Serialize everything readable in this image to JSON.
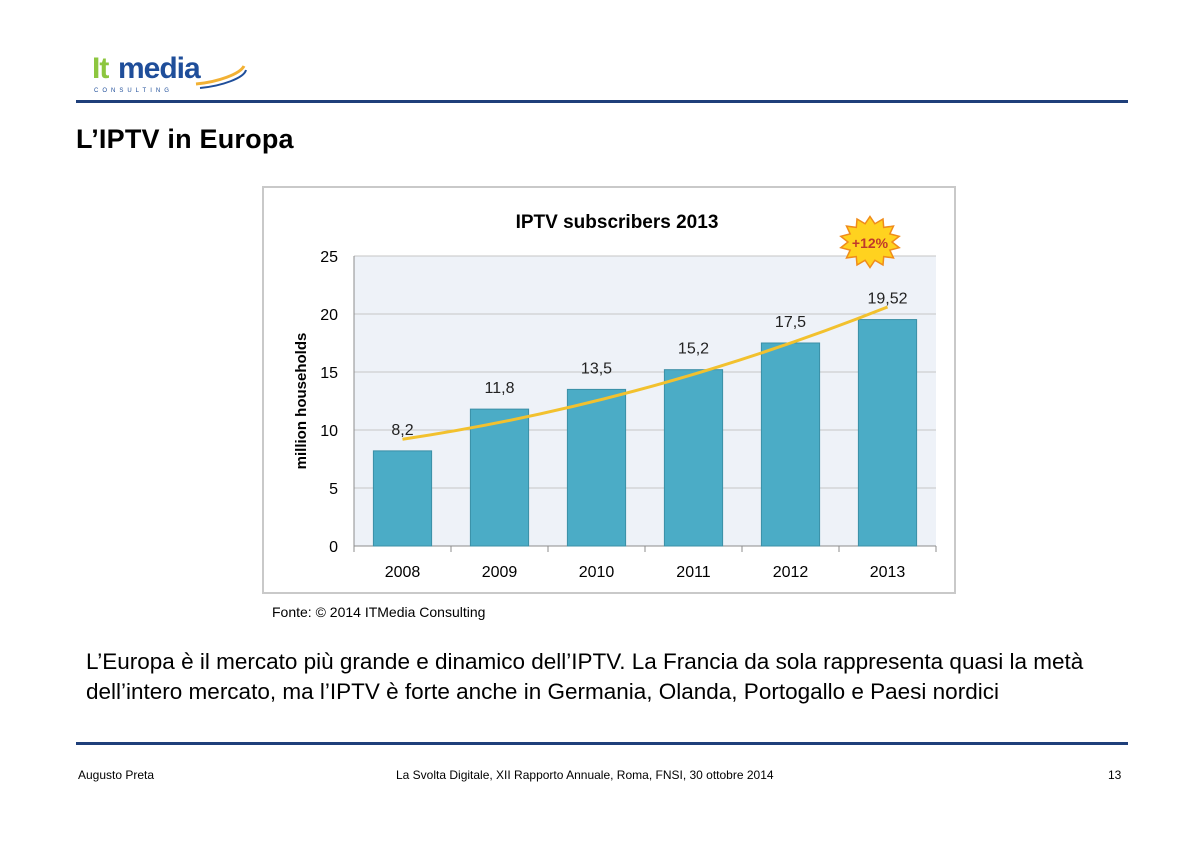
{
  "brand": {
    "logo_text": "Itmedia",
    "logo_subtext": "CONSULTING"
  },
  "slide": {
    "title": "L’IPTV in Europa"
  },
  "source": "Fonte: © 2014 ITMedia Consulting",
  "body_text": "L’Europa è il mercato più grande e dinamico dell’IPTV. La Francia da sola rappresenta quasi la metà dell’intero mercato, ma l’IPTV è forte anche in Germania, Olanda, Portogallo e Paesi nordici",
  "footer": {
    "author": "Augusto Preta",
    "event": "La Svolta Digitale, XII Rapporto Annuale, Roma, FNSI, 30 ottobre 2014",
    "page": "13"
  },
  "colors": {
    "rule": "#1f3f7a",
    "bar": "#4bacc6",
    "trend": "#f2c12e",
    "badge": "#ffd21f"
  },
  "chart_data": {
    "type": "bar",
    "title": "IPTV subscribers  2013",
    "xlabel": "",
    "ylabel": "million households",
    "categories": [
      "2008",
      "2009",
      "2010",
      "2011",
      "2012",
      "2013"
    ],
    "values": [
      8.2,
      11.8,
      13.5,
      15.2,
      17.5,
      19.52
    ],
    "data_labels": [
      "8,2",
      "11,8",
      "13,5",
      "15,2",
      "17,5",
      "19,52"
    ],
    "yticks": [
      0,
      5,
      10,
      15,
      20,
      25
    ],
    "ylim": [
      0,
      25
    ],
    "grid": true,
    "trendline": {
      "type": "curve",
      "start": 9.2,
      "end": 20.6
    },
    "annotation": "+12%"
  }
}
